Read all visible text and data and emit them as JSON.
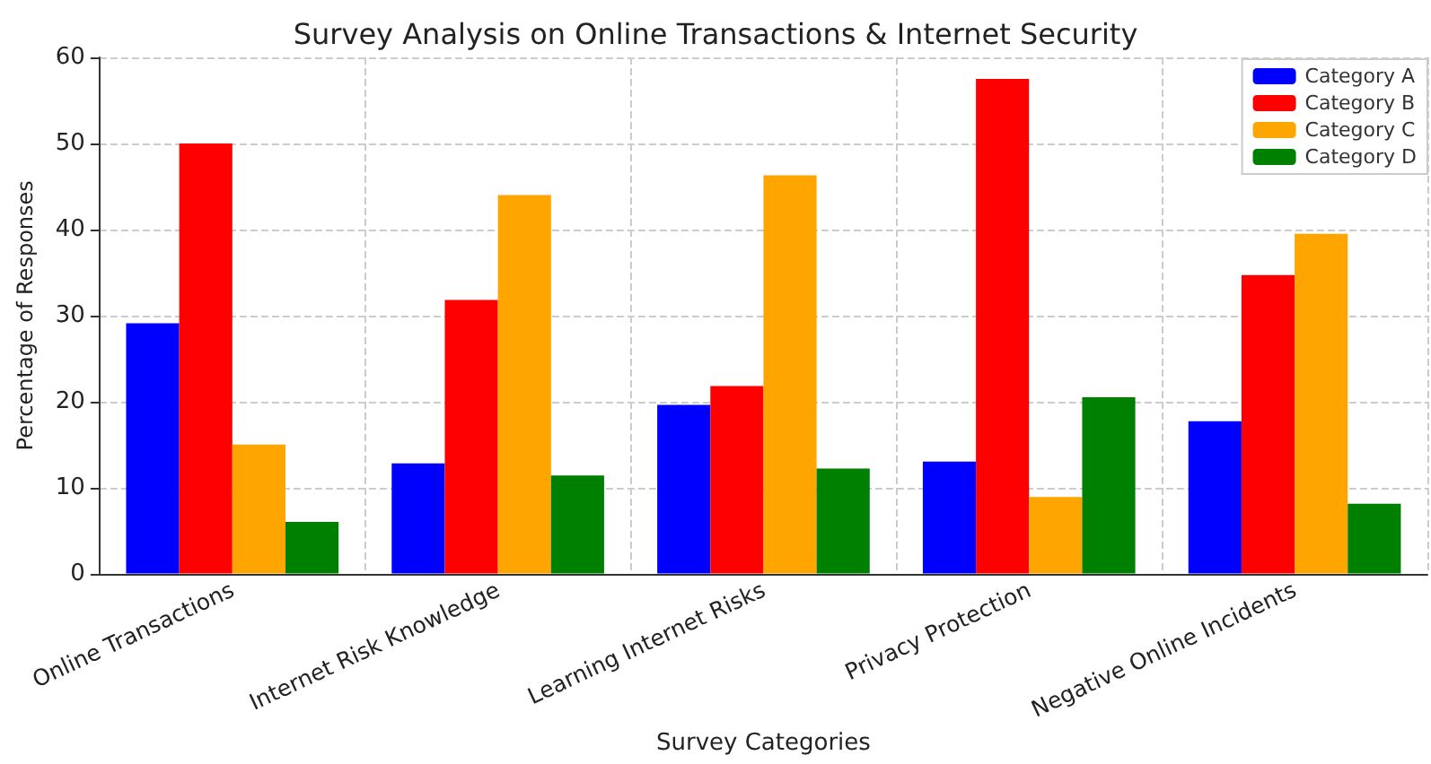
{
  "chart_data": {
    "type": "bar",
    "title": "Survey Analysis on Online Transactions & Internet Security",
    "xlabel": "Survey Categories",
    "ylabel": "Percentage of Responses",
    "categories": [
      "Online Transactions",
      "Internet Risk Knowledge",
      "Learning Internet Risks",
      "Privacy Protection",
      "Negative Online Incidents"
    ],
    "series": [
      {
        "name": "Category A",
        "color": "#0000ff",
        "values": [
          29.1,
          12.8,
          19.6,
          13,
          17.7
        ]
      },
      {
        "name": "Category B",
        "color": "#ff0000",
        "values": [
          50,
          31.8,
          21.8,
          57.5,
          34.7
        ]
      },
      {
        "name": "Category C",
        "color": "#ffa500",
        "values": [
          15,
          44,
          46.3,
          8.9,
          39.5
        ]
      },
      {
        "name": "Category D",
        "color": "#008000",
        "values": [
          6,
          11.4,
          12.2,
          20.5,
          8.1
        ]
      }
    ],
    "ylim": [
      0,
      60
    ],
    "yticks": [
      0,
      10,
      20,
      30,
      40,
      50,
      60
    ],
    "grid": true,
    "legend": "top right"
  }
}
